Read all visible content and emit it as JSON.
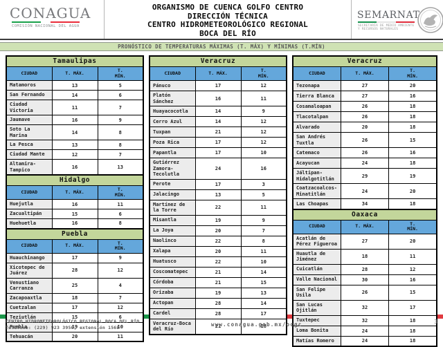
{
  "header": {
    "conagua": {
      "wordmark": "CONAGUA",
      "subtitle": "COMISIÓN NACIONAL DEL AGUA"
    },
    "title_lines": [
      "ORGANISMO DE CUENCA GOLFO CENTRO",
      "DIRECCIÓN TÉCNICA",
      "CENTRO HIDROMETEOROLÓGICO REGIONAL",
      "BOCA DEL RÍO"
    ],
    "semarnat": {
      "wordmark": "SEMARNAT",
      "subtitle": "SECRETARÍA DE MEDIO AMBIENTE\nY RECURSOS NATURALES"
    }
  },
  "banner": {
    "text": "PRONÓSTICO DE TEMPERATURAS MÁXIMAS (T. MÁX) Y MÍNIMAS (T.MÍN)"
  },
  "table_headers": {
    "city": "CIUDAD",
    "tmax": "T. MÁX.",
    "tmin": "T.\nMÍN."
  },
  "columns": [
    {
      "tables": [
        {
          "state": "Tamaulipas",
          "rows": [
            [
              "Matamoros",
              13,
              5
            ],
            [
              "San Fernando",
              14,
              6
            ],
            [
              "Ciudad Victoria",
              11,
              7
            ],
            [
              "Jaumave",
              16,
              9
            ],
            [
              "Soto La Marina",
              14,
              8
            ],
            [
              "La Pesca",
              13,
              8
            ],
            [
              "Ciudad Mante",
              12,
              7
            ],
            [
              "Altamira-Tampico",
              16,
              13
            ]
          ]
        },
        {
          "state": "Hidalgo",
          "rows": [
            [
              "Huejutla",
              16,
              11
            ],
            [
              "Zacualtipán",
              15,
              6
            ],
            [
              "Huehuetla",
              16,
              8
            ]
          ]
        },
        {
          "state": "Puebla",
          "rows": [
            [
              "Huauchinango",
              17,
              9
            ],
            [
              "Xicotepec de Juárez",
              28,
              12
            ],
            [
              "Venustiano Carranza",
              25,
              4
            ],
            [
              "Zacapoaxtla",
              18,
              7
            ],
            [
              "Cuetzalan",
              17,
              12
            ],
            [
              "Teziutlán",
              15,
              6
            ],
            [
              "Puebla",
              19,
              10
            ],
            [
              "Tehuacán",
              20,
              11
            ]
          ]
        }
      ]
    },
    {
      "tables": [
        {
          "state": "Veracruz",
          "rows": [
            [
              "Pánuco",
              17,
              12
            ],
            [
              "Platón Sánchez",
              16,
              11
            ],
            [
              "Huayacocotla",
              14,
              9
            ],
            [
              "Cerro Azul",
              14,
              12
            ],
            [
              "Tuxpan",
              21,
              12
            ],
            [
              "Poza Rica",
              17,
              12
            ],
            [
              "Papantla",
              17,
              10
            ],
            [
              "Gutiérrez Zamora-Tecolutla",
              24,
              16
            ],
            [
              "Perote",
              17,
              3
            ],
            [
              "Jalacingo",
              13,
              5
            ],
            [
              "Martínez de la Torre",
              22,
              11
            ],
            [
              "Misantla",
              19,
              9
            ],
            [
              "La Joya",
              20,
              7
            ],
            [
              "Naolinco",
              22,
              8
            ],
            [
              "Xalapa",
              20,
              11
            ],
            [
              "Huatusco",
              22,
              10
            ],
            [
              "Coscomatepec",
              21,
              14
            ],
            [
              "Córdoba",
              21,
              15
            ],
            [
              "Orizaba",
              19,
              13
            ],
            [
              "Actopan",
              28,
              14
            ],
            [
              "Cardel",
              28,
              17
            ],
            [
              "Veracruz-Boca del Río",
              21,
              18
            ]
          ]
        }
      ]
    },
    {
      "tables": [
        {
          "state": "Veracruz",
          "rows": [
            [
              "Tezonapa",
              27,
              20
            ],
            [
              "Tierra Blanca",
              27,
              16
            ],
            [
              "Cosamaloapan",
              26,
              18
            ],
            [
              "Tlacotalpan",
              26,
              18
            ],
            [
              "Alvarado",
              20,
              18
            ],
            [
              "San Andrés Tuxtla",
              26,
              15
            ],
            [
              "Catemaco",
              26,
              16
            ],
            [
              "Acayucan",
              24,
              18
            ],
            [
              "Jáltipan-Hidalgotitlán",
              29,
              19
            ],
            [
              "Coatzacoalcos-Minatitlán",
              24,
              20
            ],
            [
              "Las Choapas",
              34,
              18
            ]
          ]
        },
        {
          "state": "Oaxaca",
          "rows": [
            [
              "Acatlán de Pérez Figueroa",
              27,
              20
            ],
            [
              "Huautla de Jiménez",
              18,
              11
            ],
            [
              "Cuicatlán",
              28,
              12
            ],
            [
              "Valle Nacional",
              30,
              16
            ],
            [
              "San Felipe Usila",
              26,
              15
            ],
            [
              "San Lucas Ojitlán",
              32,
              17
            ],
            [
              "Tuxtepec",
              32,
              18
            ],
            [
              "Loma Bonita",
              24,
              18
            ],
            [
              "Matías Romero",
              24,
              18
            ]
          ]
        }
      ]
    }
  ],
  "footer": {
    "line1": "CENTRO HIDROMETEOROLÓGICO REGIONAL BOCA DEL RÍO",
    "line2": "Teléfono: (229) 923 3950, extensión 1568",
    "url": "www.conagua.gob.mx/ocgc",
    "page": "3"
  },
  "colors": {
    "state_header_bg": "#c3d69b",
    "column_header_bg": "#64a7db",
    "banner_bg": "#cfe2b4",
    "city_cell_bg": "#ececec",
    "flag_green": "#1a9648",
    "flag_red": "#e13a40"
  }
}
